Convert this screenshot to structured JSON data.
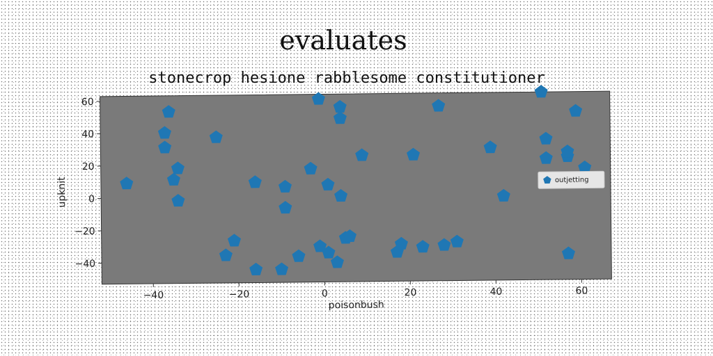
{
  "chart_data": {
    "type": "scatter",
    "title": "evaluates",
    "subtitle": "stonecrop hesione rabblesome constitutioner",
    "xlabel": "poisonbush",
    "ylabel": "upknit",
    "xlim": [
      -52,
      67
    ],
    "ylim": [
      -53,
      63
    ],
    "xticks": [
      -40,
      -20,
      0,
      20,
      40,
      60
    ],
    "yticks": [
      -40,
      -20,
      0,
      20,
      40,
      60
    ],
    "xtick_labels": [
      "−40",
      "−20",
      "0",
      "20",
      "40",
      "60"
    ],
    "ytick_labels": [
      "−40",
      "−20",
      "0",
      "20",
      "40",
      "60"
    ],
    "legend_position": "center-right",
    "grid": false,
    "series": [
      {
        "name": "outjetting",
        "color": "#1f77b4",
        "marker": "pentagon",
        "points": [
          [
            -46,
            9
          ],
          [
            -36,
            53
          ],
          [
            -37,
            40
          ],
          [
            -37,
            31
          ],
          [
            -34,
            18
          ],
          [
            -35,
            11
          ],
          [
            -34,
            -2
          ],
          [
            -25,
            37
          ],
          [
            -21,
            -27
          ],
          [
            -23,
            -36
          ],
          [
            -16,
            9
          ],
          [
            -16,
            -45
          ],
          [
            -10,
            -45
          ],
          [
            -9,
            6
          ],
          [
            -9,
            -7
          ],
          [
            -6,
            -37
          ],
          [
            -3,
            17
          ],
          [
            -1,
            60
          ],
          [
            -1,
            -31
          ],
          [
            1,
            7
          ],
          [
            1,
            -35
          ],
          [
            3,
            -41
          ],
          [
            4,
            0
          ],
          [
            4,
            55
          ],
          [
            4,
            48
          ],
          [
            5,
            -26
          ],
          [
            6,
            -25
          ],
          [
            9,
            25
          ],
          [
            17,
            -35
          ],
          [
            18,
            -30
          ],
          [
            21,
            25
          ],
          [
            23,
            -32
          ],
          [
            27,
            55
          ],
          [
            28,
            -31
          ],
          [
            31,
            -29
          ],
          [
            39,
            29
          ],
          [
            42,
            -1
          ],
          [
            51,
            63
          ],
          [
            52,
            34
          ],
          [
            52,
            22
          ],
          [
            57,
            23
          ],
          [
            57,
            26
          ],
          [
            57,
            -37
          ],
          [
            59,
            51
          ],
          [
            61,
            16
          ]
        ]
      }
    ]
  }
}
